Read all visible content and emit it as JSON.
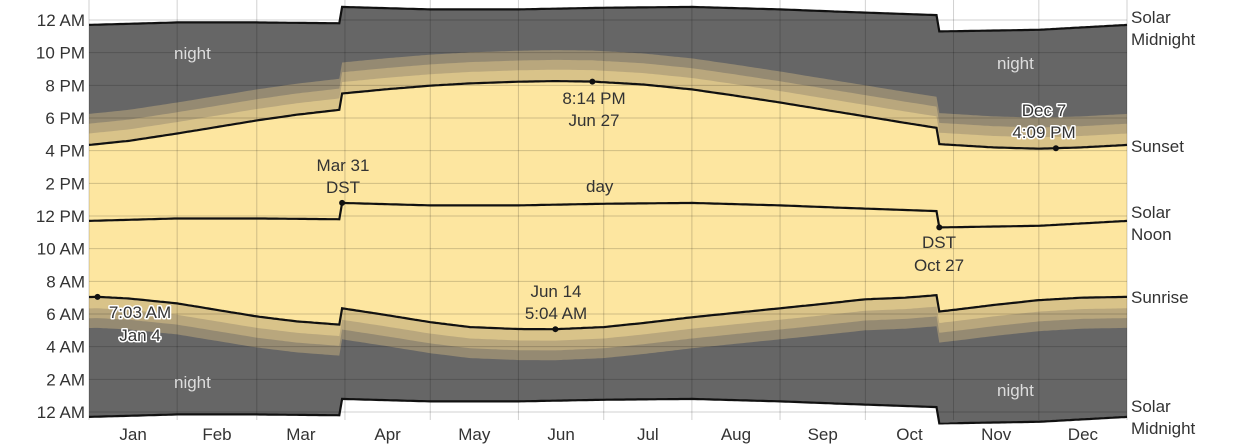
{
  "chart_data": {
    "type": "area",
    "title": "",
    "xlabel": "",
    "ylabel": "",
    "x_ticks": [
      "Jan",
      "Feb",
      "Mar",
      "Apr",
      "May",
      "Jun",
      "Jul",
      "Aug",
      "Sep",
      "Oct",
      "Nov",
      "Dec"
    ],
    "y_ticks": [
      "12 AM",
      "2 AM",
      "4 AM",
      "6 AM",
      "8 AM",
      "10 AM",
      "12 PM",
      "2 PM",
      "4 PM",
      "6 PM",
      "8 PM",
      "10 PM",
      "12 AM"
    ],
    "ylim_hours": [
      0,
      24
    ],
    "xlim_day_of_year": [
      1,
      366
    ],
    "grid": true,
    "right_labels": [
      "Solar Midnight",
      "Sunset",
      "Solar Noon",
      "Sunrise",
      "Solar Midnight"
    ],
    "region_labels": {
      "night": "night",
      "day": "day"
    },
    "dst": {
      "start": {
        "date": "Mar 31",
        "label": "DST"
      },
      "end": {
        "date": "Oct 27",
        "label": "DST"
      }
    },
    "annotations": {
      "latest_sunset": {
        "time": "8:14 PM",
        "date": "Jun 27"
      },
      "earliest_sunset": {
        "time": "4:09 PM",
        "date": "Dec 7"
      },
      "earliest_sunrise": {
        "time": "5:04 AM",
        "date": "Jun 14"
      },
      "latest_sunrise": {
        "time": "7:03 AM",
        "date": "Jan 4"
      }
    },
    "series": [
      {
        "name": "Sunrise",
        "x": [
          1,
          4,
          15,
          32,
          46,
          60,
          74,
          89,
          90,
          105,
          121,
          135,
          152,
          165,
          182,
          196,
          213,
          227,
          244,
          258,
          274,
          288,
          299,
          300,
          305,
          319,
          335,
          350,
          366
        ],
        "values": [
          7.04,
          7.05,
          6.95,
          6.65,
          6.25,
          5.85,
          5.55,
          5.35,
          6.35,
          5.95,
          5.5,
          5.2,
          5.08,
          5.07,
          5.2,
          5.45,
          5.8,
          6.05,
          6.35,
          6.6,
          6.9,
          7.0,
          7.15,
          6.15,
          6.25,
          6.55,
          6.85,
          7.0,
          7.05
        ]
      },
      {
        "name": "Sunset",
        "x": [
          1,
          15,
          32,
          46,
          60,
          74,
          89,
          90,
          105,
          121,
          135,
          152,
          165,
          178,
          196,
          213,
          227,
          244,
          258,
          274,
          288,
          299,
          300,
          319,
          335,
          341,
          350,
          366
        ],
        "values": [
          16.35,
          16.6,
          17.05,
          17.45,
          17.85,
          18.2,
          18.5,
          19.5,
          19.75,
          19.98,
          20.12,
          20.22,
          20.26,
          20.23,
          20.05,
          19.75,
          19.4,
          18.95,
          18.55,
          18.1,
          17.7,
          17.4,
          16.4,
          16.2,
          16.12,
          16.15,
          16.2,
          16.35
        ]
      },
      {
        "name": "Solar Noon",
        "x": [
          1,
          32,
          60,
          89,
          90,
          121,
          152,
          182,
          213,
          244,
          274,
          299,
          300,
          335,
          366
        ],
        "values": [
          11.7,
          11.85,
          11.85,
          11.8,
          12.8,
          12.65,
          12.65,
          12.75,
          12.8,
          12.65,
          12.45,
          12.3,
          11.3,
          11.4,
          11.7
        ]
      },
      {
        "name": "Solar Midnight",
        "x": [
          1,
          32,
          60,
          89,
          90,
          121,
          152,
          182,
          213,
          244,
          274,
          299,
          300,
          335,
          366
        ],
        "values": [
          23.7,
          23.85,
          23.85,
          23.8,
          24.8,
          24.65,
          24.65,
          24.75,
          24.8,
          24.65,
          24.45,
          24.3,
          23.3,
          23.4,
          23.7
        ]
      }
    ],
    "colors": {
      "night": "#666666",
      "day": "#fde6a0",
      "twilight": [
        "#d9c389",
        "#b9a77d",
        "#958a72"
      ],
      "line": "#111111",
      "grid": "#000000"
    }
  }
}
